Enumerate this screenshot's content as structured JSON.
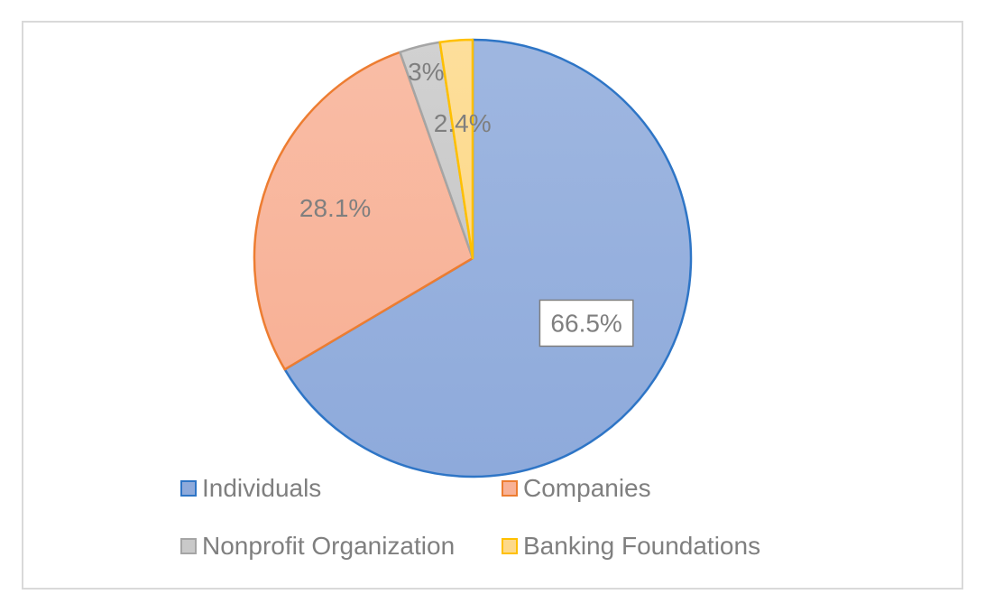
{
  "chart_data": {
    "type": "pie",
    "categories": [
      "Individuals",
      "Companies",
      "Nonprofit Organization",
      "Banking Foundations"
    ],
    "values": [
      66.5,
      28.1,
      3,
      2.4
    ],
    "labels": [
      "66.5%",
      "28.1%",
      "3%",
      "2.4%"
    ],
    "legend_position": "bottom",
    "start_angle": "12 o'clock",
    "direction": "clockwise"
  },
  "colors": {
    "slice_fills": [
      "#8eaadb",
      "#f8b196",
      "#c9c9c9",
      "#fdd98a"
    ],
    "slice_strokes": [
      "#2e75c6",
      "#ed7d31",
      "#a5a5a5",
      "#ffc000"
    ],
    "label_text": "#7f7f7f",
    "frame_border": "#d9d9d9"
  }
}
